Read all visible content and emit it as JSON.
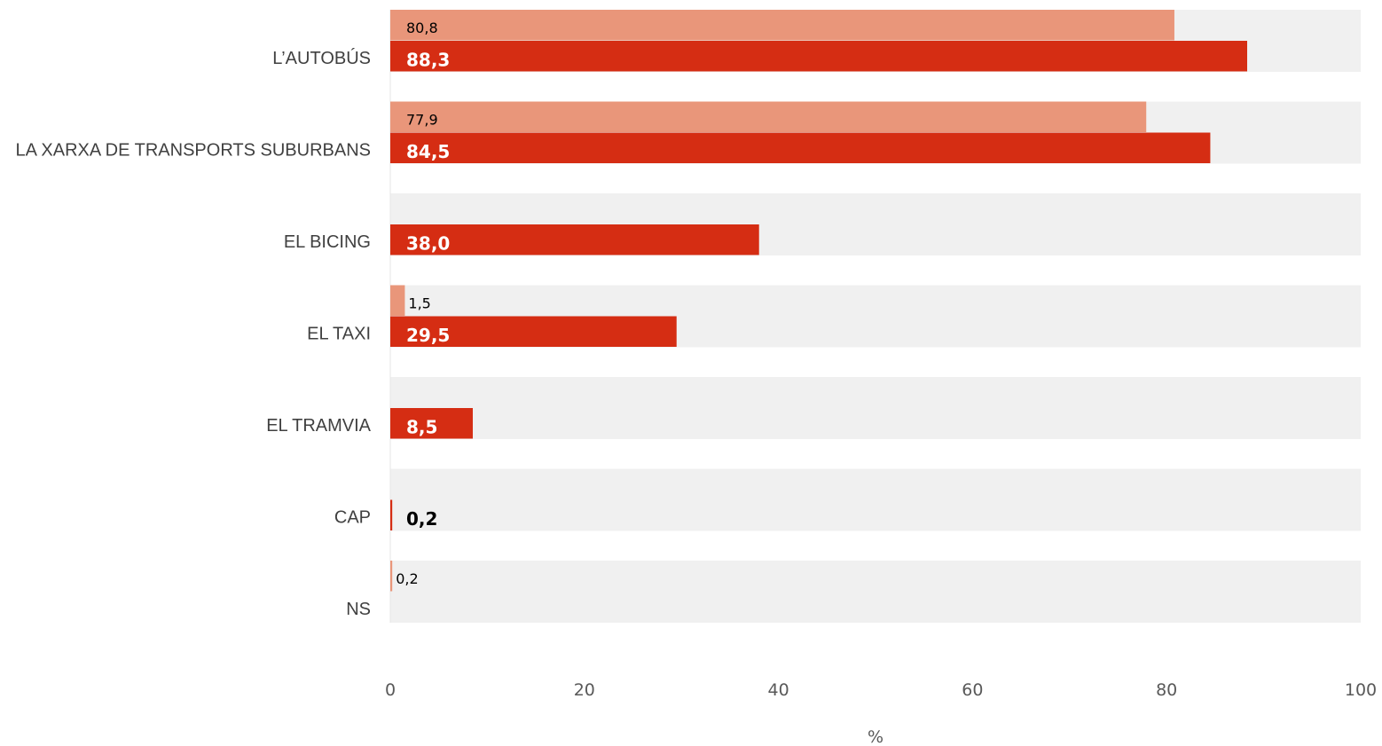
{
  "chart_data": {
    "type": "bar",
    "orientation": "horizontal",
    "categories": [
      "L’AUTOBÚS",
      "LA XARXA DE TRANSPORTS SUBURBANS",
      "EL BICING",
      "EL TAXI",
      "EL TRAMVIA",
      "CAP",
      "NS"
    ],
    "value_labels": {
      "light": [
        "80,8",
        "77,9",
        "",
        "1,5",
        "",
        "",
        "0,2"
      ],
      "dark": [
        "88,3",
        "84,5",
        "38,0",
        "29,5",
        "8,5",
        "0,2",
        ""
      ]
    },
    "series": [
      {
        "values": [
          80.8,
          77.9,
          null,
          1.5,
          null,
          null,
          0.2
        ],
        "color": "#E9967A"
      },
      {
        "values": [
          88.3,
          84.5,
          38.0,
          29.5,
          8.5,
          0.2,
          null
        ],
        "color": "#D52D13"
      }
    ],
    "xlabel": "%",
    "xlim": [
      0,
      100
    ],
    "x_ticks": [
      "0",
      "20",
      "40",
      "60",
      "80",
      "100"
    ],
    "band_color": "#F0F0F0",
    "grid": false,
    "legend": "none"
  }
}
